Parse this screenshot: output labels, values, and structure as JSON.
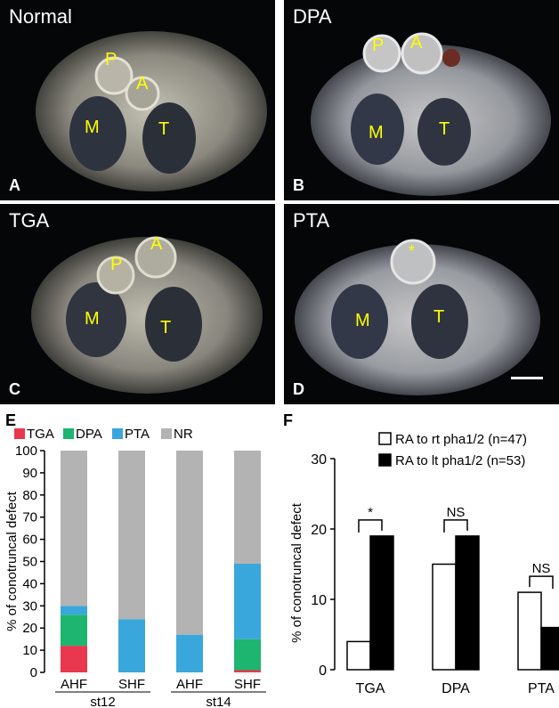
{
  "panels": [
    {
      "title": "Normal",
      "letter": "A",
      "labels": [
        "P",
        "A",
        "M",
        "T"
      ]
    },
    {
      "title": "DPA",
      "letter": "B",
      "labels": [
        "P",
        "A",
        "M",
        "T"
      ]
    },
    {
      "title": "TGA",
      "letter": "C",
      "labels": [
        "P",
        "A",
        "M",
        "T"
      ]
    },
    {
      "title": "PTA",
      "letter": "D",
      "labels": [
        "*",
        "M",
        "T"
      ]
    }
  ],
  "chart_data": [
    {
      "panel_letter": "E",
      "type": "bar",
      "stacked": true,
      "ylabel": "% of conotruncal defect",
      "ylim": [
        0,
        100
      ],
      "yticks": [
        0,
        10,
        20,
        30,
        40,
        50,
        60,
        70,
        80,
        90,
        100
      ],
      "categories": [
        "AHF",
        "SHF",
        "AHF",
        "SHF"
      ],
      "groups": [
        {
          "label": "st12",
          "categories": [
            0,
            1
          ]
        },
        {
          "label": "st14",
          "categories": [
            2,
            3
          ]
        }
      ],
      "series": [
        {
          "name": "TGA",
          "color": "#e8374f",
          "values": [
            12,
            0,
            0,
            1
          ]
        },
        {
          "name": "DPA",
          "color": "#1db56f",
          "values": [
            14,
            0,
            0,
            14
          ]
        },
        {
          "name": "PTA",
          "color": "#3aa7dc",
          "values": [
            4,
            24,
            17,
            34
          ]
        },
        {
          "name": "NR",
          "color": "#b3b3b3",
          "values": [
            70,
            76,
            83,
            51
          ]
        }
      ],
      "legend": "top"
    },
    {
      "panel_letter": "F",
      "type": "bar",
      "ylabel": "% of conotruncal defect",
      "ylim": [
        0,
        30
      ],
      "yticks": [
        0,
        10,
        20,
        30
      ],
      "categories": [
        "TGA",
        "DPA",
        "PTA"
      ],
      "series": [
        {
          "name": "RA to rt pha1/2 (n=47)",
          "color": "#ffffff",
          "values": [
            4,
            15,
            11
          ]
        },
        {
          "name": "RA to lt pha1/2 (n=53)",
          "color": "#000000",
          "values": [
            19,
            19,
            6
          ]
        }
      ],
      "annotations": [
        "*",
        "NS",
        "NS"
      ],
      "legend": "top-right"
    }
  ]
}
